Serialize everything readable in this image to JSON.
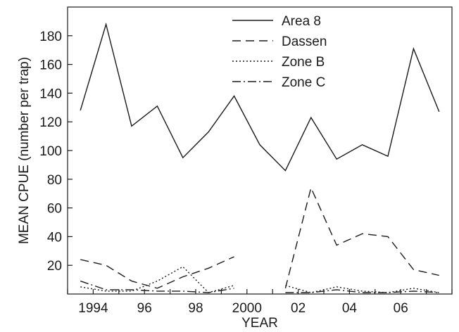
{
  "chart_data": {
    "type": "line",
    "title": "",
    "xlabel": "YEAR",
    "ylabel": "MEAN CPUE (number per trap)",
    "xlim": [
      1993,
      2008
    ],
    "ylim": [
      0,
      200
    ],
    "x_ticks": [
      1994,
      1996,
      1998,
      2000,
      2002,
      2004,
      2006
    ],
    "x_tick_labels": [
      "1994",
      "96",
      "98",
      "2000",
      "02",
      "04",
      "06"
    ],
    "y_ticks": [
      20,
      40,
      60,
      80,
      100,
      120,
      140,
      160,
      180
    ],
    "y_tick_labels": [
      "20",
      "40",
      "60",
      "80",
      "100",
      "120",
      "140",
      "160",
      "180"
    ],
    "grid": false,
    "legend_position": "top-right",
    "series": [
      {
        "name": "Area 8",
        "dash": "solid",
        "color": "#1a1a1a",
        "x": [
          1993.5,
          1994.5,
          1995.5,
          1996.5,
          1997.5,
          1998.5,
          1999.5,
          2000.5,
          2001.5,
          2002.5,
          2003.5,
          2004.5,
          2005.5,
          2006.5,
          2007.5
        ],
        "values": [
          128,
          188,
          117,
          131,
          95,
          113,
          138,
          104,
          86,
          123,
          94,
          104,
          96,
          171,
          127
        ]
      },
      {
        "name": "Dassen",
        "dash": "dashed",
        "color": "#1a1a1a",
        "x": [
          1993.5,
          1994.5,
          1995.5,
          1996.5,
          1997.5,
          1998.5,
          1999.5,
          null,
          2001.5,
          2002.5,
          2003.5,
          2004.5,
          2005.5,
          2006.5,
          2007.5
        ],
        "values": [
          24,
          20,
          9,
          4,
          12,
          18,
          26,
          null,
          4,
          74,
          34,
          42,
          40,
          17,
          13
        ]
      },
      {
        "name": "Zone B",
        "dash": "dotted",
        "color": "#1a1a1a",
        "x": [
          1993.5,
          1994.5,
          1995.5,
          1996.5,
          1997.5,
          1998.5,
          1999.5,
          null,
          2001.5,
          2002.5,
          2003.5,
          2004.5,
          2005.5,
          2006.5,
          2007.5
        ],
        "values": [
          5,
          2,
          2,
          9,
          19,
          1,
          6,
          null,
          6,
          1,
          5,
          2,
          1,
          4,
          1
        ]
      },
      {
        "name": "Zone C",
        "dash": "dashdot",
        "color": "#1a1a1a",
        "x": [
          1993.5,
          1994.5,
          1995.5,
          1996.5,
          1997.5,
          1998.5,
          1999.5,
          null,
          2001.5,
          2002.5,
          2003.5,
          2004.5,
          2005.5,
          2006.5,
          2007.5
        ],
        "values": [
          9,
          3,
          3,
          2,
          2,
          1,
          4,
          null,
          1,
          1,
          3,
          1,
          1,
          2,
          1
        ]
      }
    ]
  }
}
